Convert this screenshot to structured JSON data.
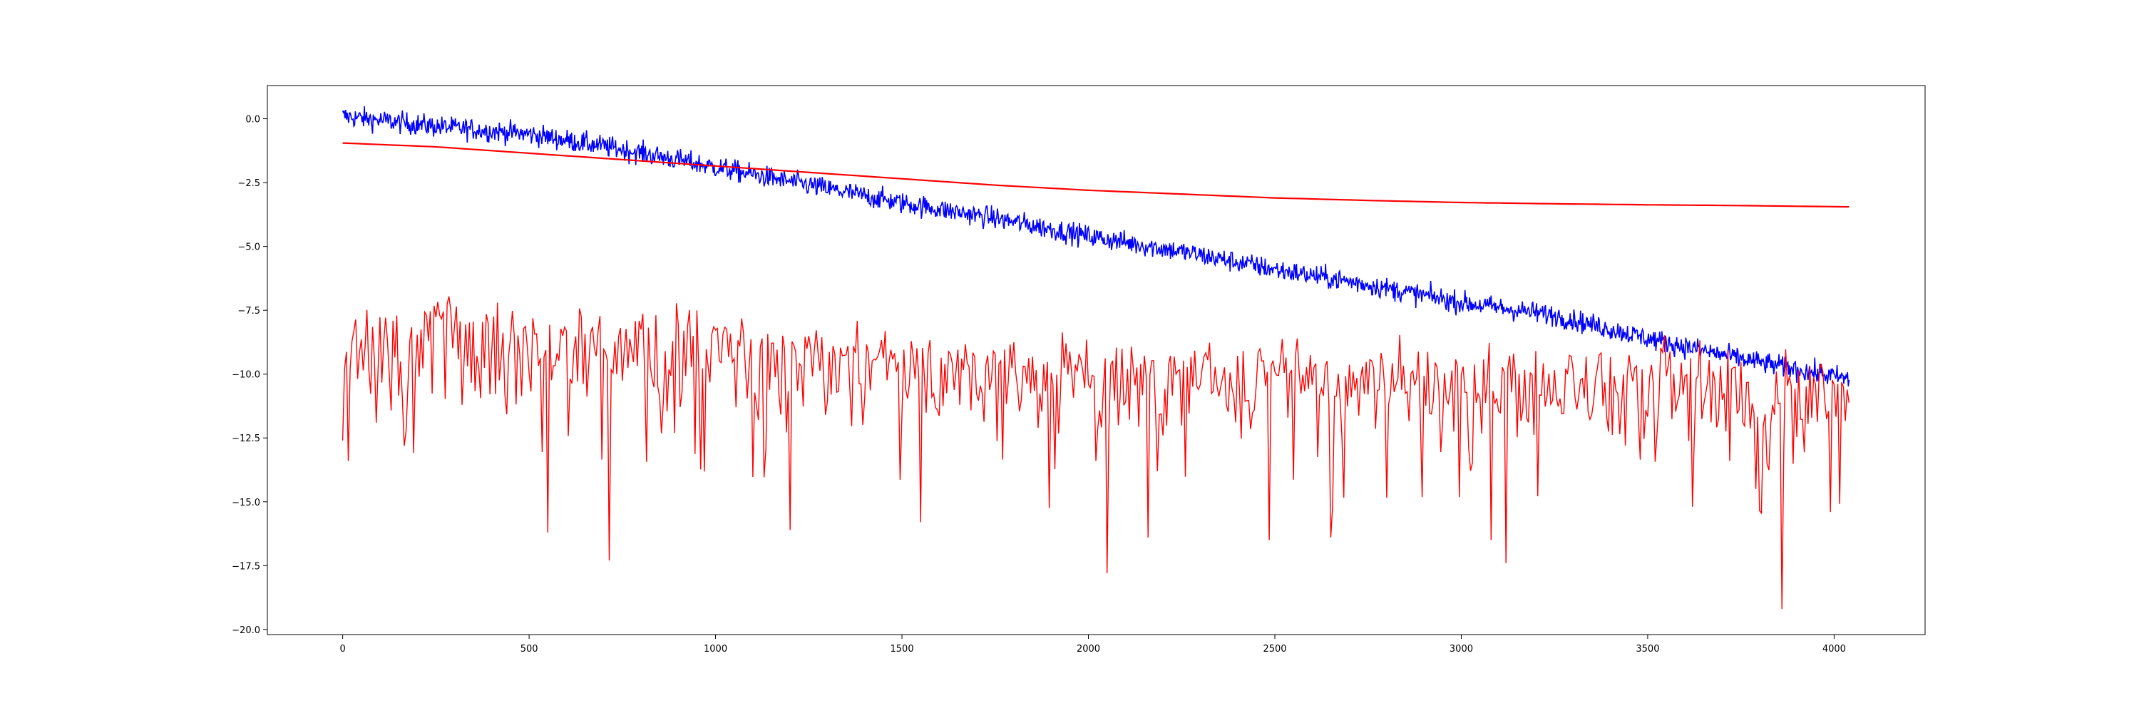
{
  "chart_data": {
    "type": "line",
    "title": "",
    "xlabel": "",
    "ylabel": "",
    "xlim": [
      -202,
      4244
    ],
    "ylim": [
      -20.2,
      1.3
    ],
    "grid": false,
    "legend": "none",
    "x_ticks": [
      {
        "value": 0,
        "label": "0"
      },
      {
        "value": 500,
        "label": "500"
      },
      {
        "value": 1000,
        "label": "1000"
      },
      {
        "value": 1500,
        "label": "1500"
      },
      {
        "value": 2000,
        "label": "2000"
      },
      {
        "value": 2500,
        "label": "2500"
      },
      {
        "value": 3000,
        "label": "3000"
      },
      {
        "value": 3500,
        "label": "3500"
      },
      {
        "value": 4000,
        "label": "4000"
      }
    ],
    "y_ticks": [
      {
        "value": 0.0,
        "label": "0.0"
      },
      {
        "value": -2.5,
        "label": "−2.5"
      },
      {
        "value": -5.0,
        "label": "−5.0"
      },
      {
        "value": -7.5,
        "label": "−7.5"
      },
      {
        "value": -10.0,
        "label": "−10.0"
      },
      {
        "value": -12.5,
        "label": "−12.5"
      },
      {
        "value": -15.0,
        "label": "−15.0"
      },
      {
        "value": -17.5,
        "label": "−17.5"
      },
      {
        "value": -20.0,
        "label": "−20.0"
      }
    ],
    "series": [
      {
        "color": "#0000ff",
        "style": "noisy",
        "x": [
          0,
          250,
          500,
          750,
          1000,
          1250,
          1500,
          1750,
          2000,
          2250,
          2500,
          2750,
          3000,
          3250,
          3500,
          3750,
          4040
        ],
        "y": [
          0.1,
          -0.3,
          -0.6,
          -1.2,
          -1.9,
          -2.6,
          -3.3,
          -3.9,
          -4.6,
          -5.2,
          -5.9,
          -6.5,
          -7.2,
          -7.7,
          -8.6,
          -9.4,
          -10.2
        ],
        "noise": 0.35
      },
      {
        "color": "#ff0000",
        "style": "smooth",
        "x": [
          0,
          250,
          500,
          750,
          1000,
          1250,
          1500,
          1750,
          2000,
          2250,
          2500,
          2750,
          3000,
          3250,
          3500,
          3750,
          4040
        ],
        "y": [
          -0.95,
          -1.1,
          -1.35,
          -1.6,
          -1.85,
          -2.1,
          -2.35,
          -2.6,
          -2.8,
          -2.95,
          -3.1,
          -3.2,
          -3.28,
          -3.33,
          -3.37,
          -3.4,
          -3.45
        ]
      },
      {
        "color": "#ff0000",
        "style": "noisy-spiky",
        "x": [
          0,
          250,
          500,
          750,
          1000,
          1250,
          1500,
          1750,
          2000,
          2250,
          2500,
          2750,
          3000,
          3250,
          3500,
          3750,
          4040
        ],
        "y": [
          -8.6,
          -8.7,
          -8.9,
          -9.0,
          -9.0,
          -9.5,
          -9.9,
          -10.2,
          -10.3,
          -10.4,
          -10.3,
          -10.4,
          -10.4,
          -10.5,
          -10.6,
          -10.7,
          -10.9
        ],
        "noise": 0.9,
        "spikes": [
          {
            "x": 0,
            "y": -12.6
          },
          {
            "x": 550,
            "y": -16.2
          },
          {
            "x": 715,
            "y": -17.3
          },
          {
            "x": 1200,
            "y": -16.1
          },
          {
            "x": 1550,
            "y": -15.8
          },
          {
            "x": 2050,
            "y": -17.8
          },
          {
            "x": 2160,
            "y": -16.4
          },
          {
            "x": 2485,
            "y": -16.5
          },
          {
            "x": 2650,
            "y": -16.4
          },
          {
            "x": 3080,
            "y": -16.5
          },
          {
            "x": 3120,
            "y": -17.4
          },
          {
            "x": 3860,
            "y": -19.2
          },
          {
            "x": 3990,
            "y": -15.4
          }
        ]
      }
    ]
  }
}
